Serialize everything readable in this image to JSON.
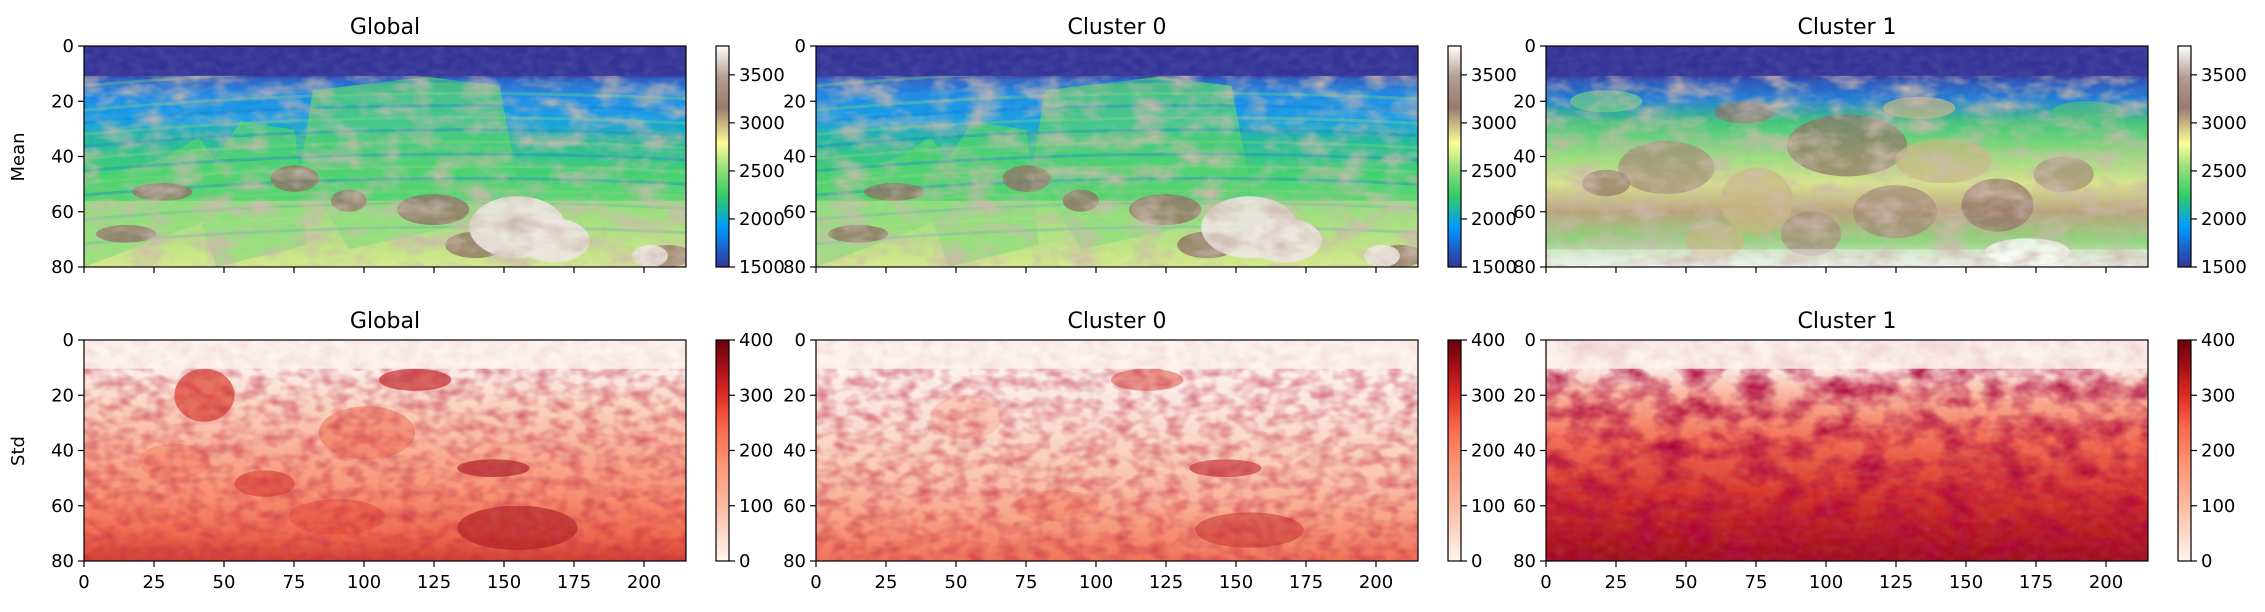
{
  "chart_data": [
    {
      "type": "heatmap",
      "row": "Mean",
      "title": "Global",
      "ylabel": "Mean",
      "xlim": [
        0,
        215
      ],
      "ylim": [
        80,
        0
      ],
      "xticks": [
        0,
        25,
        50,
        75,
        100,
        125,
        150,
        175,
        200
      ],
      "yticks": [
        0,
        20,
        40,
        60,
        80
      ],
      "colormap": "terrain",
      "colorbar": {
        "range": [
          1500,
          3800
        ],
        "ticks": [
          1500,
          2000,
          2500,
          3000,
          3500
        ]
      },
      "x_tick_labels_shown": false
    },
    {
      "type": "heatmap",
      "row": "Mean",
      "title": "Cluster 0",
      "ylabel": "",
      "xlim": [
        0,
        215
      ],
      "ylim": [
        80,
        0
      ],
      "xticks": [
        0,
        25,
        50,
        75,
        100,
        125,
        150,
        175,
        200
      ],
      "yticks": [
        0,
        20,
        40,
        60,
        80
      ],
      "colormap": "terrain",
      "colorbar": {
        "range": [
          1500,
          3800
        ],
        "ticks": [
          1500,
          2000,
          2500,
          3000,
          3500
        ]
      },
      "x_tick_labels_shown": false
    },
    {
      "type": "heatmap",
      "row": "Mean",
      "title": "Cluster 1",
      "ylabel": "",
      "xlim": [
        0,
        215
      ],
      "ylim": [
        80,
        0
      ],
      "xticks": [
        0,
        25,
        50,
        75,
        100,
        125,
        150,
        175,
        200
      ],
      "yticks": [
        0,
        20,
        40,
        60,
        80
      ],
      "colormap": "terrain",
      "colorbar": {
        "range": [
          1500,
          3800
        ],
        "ticks": [
          1500,
          2000,
          2500,
          3000,
          3500
        ]
      },
      "x_tick_labels_shown": false
    },
    {
      "type": "heatmap",
      "row": "Std",
      "title": "Global",
      "ylabel": "Std",
      "xlim": [
        0,
        215
      ],
      "ylim": [
        80,
        0
      ],
      "xticks": [
        0,
        25,
        50,
        75,
        100,
        125,
        150,
        175,
        200
      ],
      "yticks": [
        0,
        20,
        40,
        60,
        80
      ],
      "colormap": "Reds",
      "colorbar": {
        "range": [
          0,
          400
        ],
        "ticks": [
          0,
          100,
          200,
          300,
          400
        ]
      },
      "x_tick_labels_shown": true
    },
    {
      "type": "heatmap",
      "row": "Std",
      "title": "Cluster 0",
      "ylabel": "",
      "xlim": [
        0,
        215
      ],
      "ylim": [
        80,
        0
      ],
      "xticks": [
        0,
        25,
        50,
        75,
        100,
        125,
        150,
        175,
        200
      ],
      "yticks": [
        0,
        20,
        40,
        60,
        80
      ],
      "colormap": "Reds",
      "colorbar": {
        "range": [
          0,
          400
        ],
        "ticks": [
          0,
          100,
          200,
          300,
          400
        ]
      },
      "x_tick_labels_shown": true
    },
    {
      "type": "heatmap",
      "row": "Std",
      "title": "Cluster 1",
      "ylabel": "",
      "xlim": [
        0,
        215
      ],
      "ylim": [
        80,
        0
      ],
      "xticks": [
        0,
        25,
        50,
        75,
        100,
        125,
        150,
        175,
        200
      ],
      "yticks": [
        0,
        20,
        40,
        60,
        80
      ],
      "colormap": "Reds",
      "colorbar": {
        "range": [
          0,
          400
        ],
        "ticks": [
          0,
          100,
          200,
          300,
          400
        ]
      },
      "x_tick_labels_shown": true
    }
  ],
  "colormaps": {
    "terrain": [
      "#333399",
      "#0099ff",
      "#33cc66",
      "#99e07a",
      "#fefe98",
      "#9a7b6e",
      "#b39d92",
      "#ffffff"
    ],
    "Reds": [
      "#fff5f0",
      "#fcbba1",
      "#fc9272",
      "#fb6a4a",
      "#de2d26",
      "#a50f15",
      "#67000d"
    ]
  }
}
